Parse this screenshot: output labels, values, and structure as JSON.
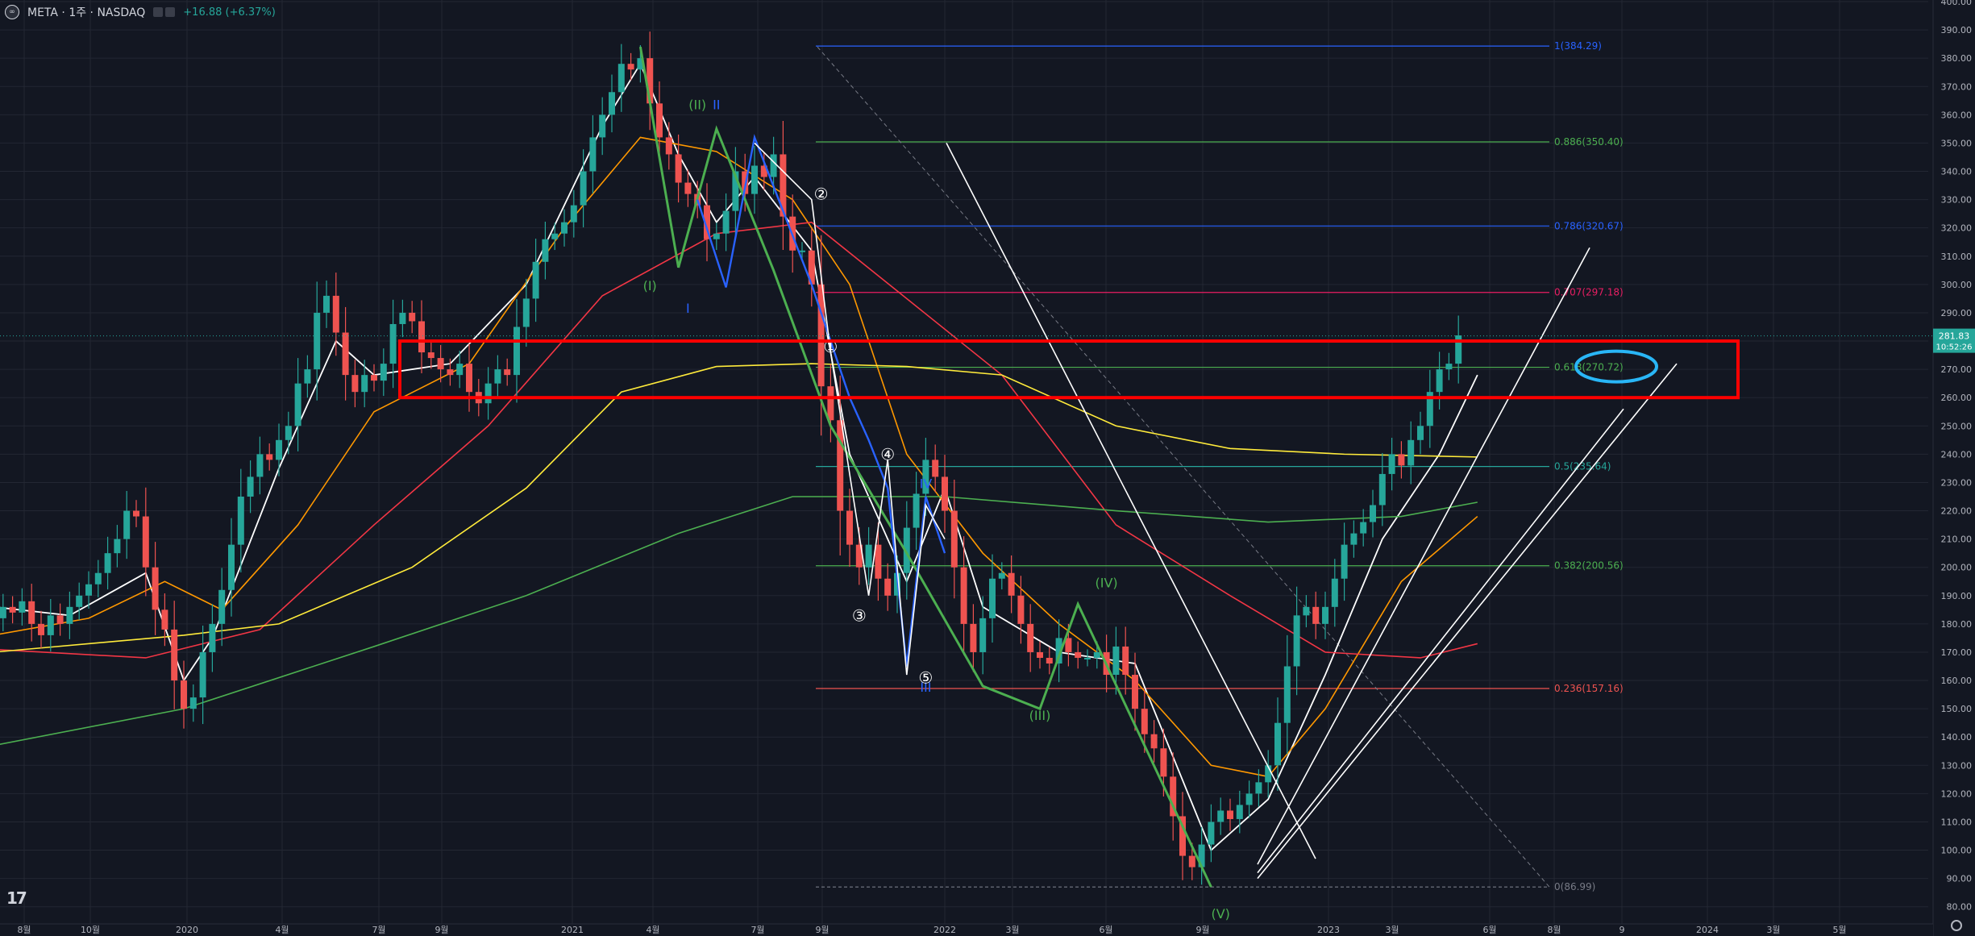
{
  "header": {
    "symbol_line": "META · 1주 · NASDAQ",
    "change": "+16.88 (+6.37%)"
  },
  "price_tags": {
    "last": "281.83",
    "countdown": "10:52:26"
  },
  "colors": {
    "background": "#131722",
    "grid": "#232733",
    "up": "#26a69a",
    "down": "#ef5350",
    "ma_white": "#ffffff",
    "ma_orange": "#ff9800",
    "ma_red": "#f23645",
    "ma_yellow": "#ffeb3b",
    "ma_green": "#4caf50",
    "wave_green": "#4caf50",
    "wave_blue": "#2962ff",
    "highlight_box": "#ff0000",
    "ellipse": "#29b6f6"
  },
  "chart_data": {
    "type": "candlestick",
    "ylim": [
      75,
      400
    ],
    "y_ticks": [
      "400.00",
      "390.00",
      "380.00",
      "370.00",
      "360.00",
      "350.00",
      "340.00",
      "330.00",
      "320.00",
      "310.00",
      "300.00",
      "290.00",
      "280.00",
      "270.00",
      "260.00",
      "250.00",
      "240.00",
      "230.00",
      "220.00",
      "210.00",
      "200.00",
      "190.00",
      "180.00",
      "170.00",
      "160.00",
      "150.00",
      "140.00",
      "130.00",
      "120.00",
      "110.00",
      "100.00",
      "90.00",
      "80.00"
    ],
    "x_ticks": [
      "8월",
      "10월",
      "2020",
      "4월",
      "7월",
      "9월",
      "2021",
      "4월",
      "7월",
      "9월",
      "2022",
      "3월",
      "6월",
      "9월",
      "2023",
      "3월",
      "6월",
      "8월",
      "9",
      "2024",
      "3월",
      "5월"
    ],
    "close_series": [
      182,
      186,
      184,
      188,
      180,
      176,
      183,
      180,
      186,
      190,
      194,
      198,
      205,
      210,
      220,
      218,
      200,
      185,
      178,
      160,
      150,
      154,
      170,
      180,
      192,
      208,
      225,
      232,
      240,
      238,
      245,
      250,
      265,
      270,
      290,
      296,
      283,
      268,
      262,
      268,
      266,
      272,
      286,
      290,
      287,
      276,
      274,
      270,
      268,
      272,
      262,
      258,
      265,
      270,
      268,
      285,
      295,
      308,
      316,
      318,
      322,
      328,
      340,
      352,
      360,
      368,
      378,
      376,
      380,
      364,
      352,
      346,
      336,
      332,
      328,
      316,
      318,
      326,
      340,
      332,
      342,
      338,
      346,
      324,
      312,
      312,
      300,
      264,
      252,
      220,
      208,
      200,
      208,
      196,
      190,
      198,
      214,
      226,
      238,
      232,
      220,
      200,
      180,
      170,
      182,
      196,
      198,
      190,
      180,
      170,
      168,
      166,
      175,
      170,
      168,
      168,
      170,
      162,
      172,
      162,
      150,
      141,
      136,
      126,
      112,
      98,
      94,
      102,
      110,
      114,
      111,
      116,
      120,
      124,
      130,
      145,
      165,
      183,
      186,
      180,
      186,
      196,
      208,
      212,
      216,
      222,
      233,
      240,
      236,
      245,
      250,
      262,
      270,
      272,
      282
    ],
    "moving_averages": [
      {
        "values": [
          [
            0,
            186
          ],
          [
            8,
            183
          ],
          [
            16,
            198
          ],
          [
            20,
            160
          ],
          [
            23,
            175
          ],
          [
            30,
            235
          ],
          [
            36,
            280
          ],
          [
            40,
            268
          ],
          [
            48,
            272
          ],
          [
            56,
            300
          ],
          [
            64,
            356
          ],
          [
            68,
            378
          ],
          [
            72,
            346
          ],
          [
            76,
            322
          ],
          [
            80,
            338
          ],
          [
            86,
            312
          ],
          [
            90,
            240
          ],
          [
            96,
            195
          ],
          [
            100,
            228
          ],
          [
            104,
            186
          ],
          [
            112,
            170
          ],
          [
            120,
            166
          ],
          [
            128,
            100
          ],
          [
            134,
            118
          ],
          [
            140,
            162
          ],
          [
            146,
            210
          ],
          [
            152,
            240
          ],
          [
            156,
            268
          ]
        ]
      },
      {
        "values": [
          [
            0,
            176
          ],
          [
            10,
            182
          ],
          [
            18,
            195
          ],
          [
            24,
            185
          ],
          [
            32,
            215
          ],
          [
            40,
            255
          ],
          [
            50,
            272
          ],
          [
            60,
            320
          ],
          [
            68,
            352
          ],
          [
            76,
            347
          ],
          [
            84,
            330
          ],
          [
            90,
            300
          ],
          [
            96,
            240
          ],
          [
            104,
            205
          ],
          [
            112,
            180
          ],
          [
            120,
            160
          ],
          [
            128,
            130
          ],
          [
            134,
            126
          ],
          [
            140,
            150
          ],
          [
            148,
            195
          ],
          [
            156,
            218
          ]
        ]
      },
      {
        "values": [
          [
            0,
            171
          ],
          [
            16,
            168
          ],
          [
            28,
            178
          ],
          [
            40,
            215
          ],
          [
            52,
            250
          ],
          [
            64,
            296
          ],
          [
            76,
            318
          ],
          [
            86,
            322
          ],
          [
            96,
            295
          ],
          [
            106,
            268
          ],
          [
            118,
            215
          ],
          [
            130,
            190
          ],
          [
            140,
            170
          ],
          [
            150,
            168
          ],
          [
            156,
            173
          ]
        ]
      },
      {
        "values": [
          [
            0,
            170
          ],
          [
            20,
            176
          ],
          [
            30,
            180
          ],
          [
            44,
            200
          ],
          [
            56,
            228
          ],
          [
            66,
            262
          ],
          [
            76,
            271
          ],
          [
            86,
            272
          ],
          [
            96,
            271
          ],
          [
            106,
            268
          ],
          [
            118,
            250
          ],
          [
            130,
            242
          ],
          [
            142,
            240
          ],
          [
            156,
            239
          ]
        ]
      },
      {
        "values": [
          [
            0,
            137
          ],
          [
            20,
            150
          ],
          [
            40,
            172
          ],
          [
            56,
            190
          ],
          [
            72,
            212
          ],
          [
            84,
            225
          ],
          [
            100,
            225
          ],
          [
            118,
            220
          ],
          [
            134,
            216
          ],
          [
            148,
            218
          ],
          [
            156,
            223
          ]
        ]
      }
    ],
    "fibonacci": [
      {
        "label": "1(384.29)",
        "value": 384.29,
        "color": "#2962ff"
      },
      {
        "label": "0.886(350.40)",
        "value": 350.4,
        "color": "#4caf50"
      },
      {
        "label": "0.786(320.67)",
        "value": 320.67,
        "color": "#2962ff"
      },
      {
        "label": "0.707(297.18)",
        "value": 297.18,
        "color": "#e91e63"
      },
      {
        "label": "0.618(270.72)",
        "value": 270.72,
        "color": "#4caf50"
      },
      {
        "label": "0.5(235.64)",
        "value": 235.64,
        "color": "#26a69a"
      },
      {
        "label": "0.382(200.56)",
        "value": 200.56,
        "color": "#4caf50"
      },
      {
        "label": "0.236(157.16)",
        "value": 157.16,
        "color": "#ef5350"
      },
      {
        "label": "0(86.99)",
        "value": 86.99,
        "color": "#787b86"
      }
    ],
    "wave_labels": [
      {
        "text": "(II)",
        "i": 74,
        "v": 362,
        "color": "#4caf50"
      },
      {
        "text": "(I)",
        "i": 69,
        "v": 298,
        "color": "#4caf50"
      },
      {
        "text": "(IV)",
        "i": 117,
        "v": 193,
        "color": "#4caf50"
      },
      {
        "text": "(III)",
        "i": 110,
        "v": 146,
        "color": "#4caf50"
      },
      {
        "text": "(V)",
        "i": 129,
        "v": 76,
        "color": "#4caf50"
      },
      {
        "text": "II",
        "i": 76,
        "v": 362,
        "color": "#2962ff"
      },
      {
        "text": "I",
        "i": 73,
        "v": 290,
        "color": "#2962ff"
      },
      {
        "text": "IV",
        "i": 98,
        "v": 228,
        "color": "#2962ff"
      },
      {
        "text": "III",
        "i": 98,
        "v": 156,
        "color": "#2962ff"
      },
      {
        "text": "①",
        "i": 88,
        "v": 276,
        "color": "#ffffff"
      },
      {
        "text": "②",
        "i": 87,
        "v": 330,
        "color": "#ffffff"
      },
      {
        "text": "③",
        "i": 91,
        "v": 181,
        "color": "#ffffff"
      },
      {
        "text": "④",
        "i": 94,
        "v": 238,
        "color": "#ffffff"
      },
      {
        "text": "⑤",
        "i": 98,
        "v": 159,
        "color": "#ffffff"
      }
    ]
  }
}
